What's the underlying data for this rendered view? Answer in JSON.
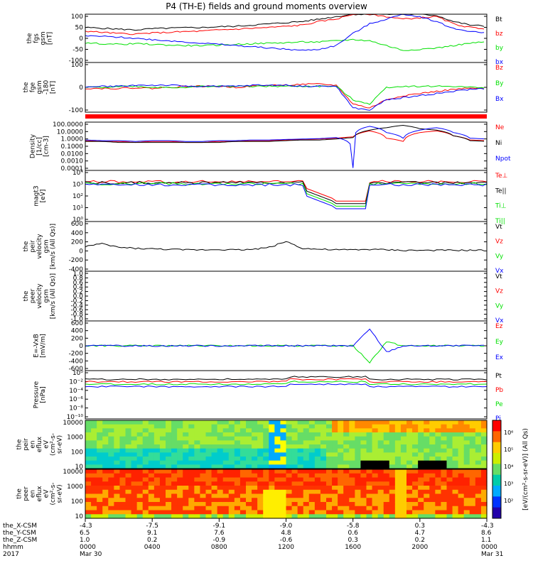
{
  "title": "P4 (TH-E) fields and ground moments overview",
  "colors": {
    "black": "#000000",
    "red": "#ff0000",
    "green": "#00e000",
    "blue": "#0000ff"
  },
  "panels": [
    {
      "id": "fgs",
      "ylabel": [
        "the",
        "fgs",
        "gsm",
        "[nT]"
      ],
      "yticks": [
        "100",
        "50",
        "0",
        "-50",
        "-100"
      ],
      "legend": [
        [
          "Bt",
          "black"
        ],
        [
          "bz",
          "red"
        ],
        [
          "by",
          "green"
        ],
        [
          "bx",
          "blue"
        ]
      ]
    },
    {
      "id": "fge",
      "ylabel": [
        "the",
        "fge",
        "gsm",
        "-180",
        "[nT]"
      ],
      "yticks": [
        "100",
        "0",
        "-100"
      ],
      "legend": [
        [
          "Bz",
          "red"
        ],
        [
          "By",
          "green"
        ],
        [
          "Bx",
          "blue"
        ]
      ]
    },
    {
      "id": "density",
      "ylabel": [
        "Density",
        "[1/cc]",
        "[cm-3]"
      ],
      "yticks": [
        "100.0000",
        "10.0000",
        "1.0000",
        "0.1000",
        "0.0100",
        "0.0010",
        "0.0001"
      ],
      "legend": [
        [
          "Ne",
          "red"
        ],
        [
          "Ni",
          "black"
        ],
        [
          "Npot",
          "blue"
        ]
      ]
    },
    {
      "id": "temp",
      "ylabel": [
        "magt3",
        "[eV]"
      ],
      "yticks": [
        "10⁴",
        "10³",
        "10²",
        "10¹",
        "10⁰"
      ],
      "legend": [
        [
          "Te⊥",
          "red"
        ],
        [
          "Te||",
          "black"
        ],
        [
          "Ti⊥",
          "green"
        ],
        [
          "Ti||",
          "green"
        ]
      ]
    },
    {
      "id": "vel1",
      "ylabel": [
        "the",
        "peir",
        "velocity",
        "gsm",
        "[km/s (All Qs)]"
      ],
      "yticks": [
        "600",
        "400",
        "200",
        "0",
        "-200",
        "-400"
      ],
      "legend": [
        [
          "Vt",
          "black"
        ],
        [
          "Vz",
          "red"
        ],
        [
          "Vy",
          "green"
        ],
        [
          "Vx",
          "blue"
        ]
      ]
    },
    {
      "id": "vel2",
      "ylabel": [
        "the",
        "peer",
        "velocity",
        "gsm",
        "[km/s (All Qs)]"
      ],
      "yticks": [
        "1.0",
        "0.8",
        "0.6",
        "0.4",
        "0.2",
        "0.0",
        "-0.2",
        "-0.4",
        "-0.6",
        "-0.8",
        "-1.0"
      ],
      "legend": [
        [
          "Vt",
          "black"
        ],
        [
          "Vz",
          "red"
        ],
        [
          "Vy",
          "green"
        ],
        [
          "Vx",
          "blue"
        ]
      ]
    },
    {
      "id": "efield",
      "ylabel": [
        "E=-VxB",
        "[mV/m]"
      ],
      "yticks": [
        "600",
        "400",
        "200",
        "0",
        "-200",
        "-400",
        "-600"
      ],
      "legend": [
        [
          "Ez",
          "red"
        ],
        [
          "Ey",
          "green"
        ],
        [
          "Ex",
          "blue"
        ]
      ]
    },
    {
      "id": "pressure",
      "ylabel": [
        "Pressure",
        "[nPa]"
      ],
      "yticks": [
        "10⁰",
        "10⁻²",
        "10⁻⁴",
        "10⁻⁶",
        "10⁻⁸",
        "10⁻¹⁰"
      ],
      "legend": [
        [
          "Pt",
          "black"
        ],
        [
          "Pb",
          "red"
        ],
        [
          "Pe",
          "green"
        ],
        [
          "Pi",
          "blue"
        ]
      ]
    },
    {
      "id": "ion_spec",
      "ylabel": [
        "the",
        "peir",
        "en",
        "eflux",
        "eV",
        "(cm²-s-",
        "sr-eV)"
      ],
      "yticks": [
        "10000",
        "1000",
        "100",
        "10"
      ],
      "legend": []
    },
    {
      "id": "ele_spec",
      "ylabel": [
        "the",
        "peer",
        "en",
        "eflux",
        "eV",
        "(cm²-s-",
        "sr-eV)"
      ],
      "yticks": [
        "10000",
        "1000",
        "100",
        "10"
      ],
      "legend": []
    }
  ],
  "colorbar": {
    "ticks": [
      "10⁶",
      "10⁵",
      "10⁴",
      "10³",
      "10²"
    ],
    "label": "[eV/(cm²-s-sr-eV)] (All Qs)"
  },
  "xaxis": {
    "row_labels": [
      "the_X-CSM",
      "the_Y-CSM",
      "the_Z-CSM",
      "hhmm",
      "2017"
    ],
    "columns": [
      {
        "x": "-4.3",
        "y": "6.5",
        "z": "1.0",
        "t": "0000",
        "d": "Mar 30"
      },
      {
        "x": "-7.5",
        "y": "9.1",
        "z": "0.2",
        "t": "0400",
        "d": ""
      },
      {
        "x": "-9.1",
        "y": "7.6",
        "z": "-0.9",
        "t": "0800",
        "d": ""
      },
      {
        "x": "-9.0",
        "y": "4.8",
        "z": "-0.6",
        "t": "1200",
        "d": ""
      },
      {
        "x": "-5.8",
        "y": "0.6",
        "z": "0.3",
        "t": "1600",
        "d": ""
      },
      {
        "x": "0.3",
        "y": "4.7",
        "z": "0.2",
        "t": "2000",
        "d": ""
      },
      {
        "x": "-4.3",
        "y": "8.6",
        "z": "1.1",
        "t": "0000",
        "d": "Mar 31"
      }
    ]
  },
  "chart_data": {
    "type": "line",
    "title": "P4 (TH-E) fields and ground moments overview",
    "x_hours": [
      0,
      1,
      2,
      3,
      4,
      5,
      6,
      7,
      8,
      9,
      10,
      11,
      12,
      13,
      14,
      15,
      16,
      17,
      18,
      19,
      20,
      21,
      22,
      23,
      24
    ],
    "series": [
      {
        "panel": "fgs",
        "name": "Bt",
        "values": [
          45,
          42,
          38,
          35,
          40,
          42,
          44,
          45,
          48,
          50,
          55,
          60,
          65,
          70,
          80,
          90,
          100,
          100,
          100,
          100,
          100,
          95,
          70,
          55,
          50
        ]
      },
      {
        "panel": "fgs",
        "name": "bz",
        "values": [
          30,
          25,
          20,
          18,
          22,
          25,
          28,
          30,
          35,
          38,
          42,
          45,
          50,
          55,
          70,
          80,
          100,
          100,
          90,
          80,
          85,
          90,
          60,
          45,
          40
        ]
      },
      {
        "panel": "fgs",
        "name": "by",
        "values": [
          -20,
          -22,
          -25,
          -22,
          -25,
          -28,
          -30,
          -30,
          -28,
          -25,
          -22,
          -20,
          -18,
          -15,
          -15,
          -10,
          -5,
          -10,
          -30,
          -50,
          -45,
          -40,
          -30,
          -20,
          -15
        ]
      },
      {
        "panel": "fgs",
        "name": "bx",
        "values": [
          10,
          8,
          5,
          0,
          -5,
          -10,
          -15,
          -20,
          -25,
          -30,
          -35,
          -40,
          -45,
          -50,
          -45,
          -30,
          20,
          60,
          80,
          100,
          90,
          70,
          40,
          30,
          20
        ]
      },
      {
        "panel": "fge",
        "name": "Bz",
        "values": [
          -5,
          -5,
          -5,
          -2,
          -5,
          0,
          5,
          5,
          5,
          0,
          5,
          10,
          10,
          15,
          15,
          10,
          -80,
          -100,
          -60,
          -40,
          -30,
          -20,
          -10,
          -5,
          -5
        ]
      },
      {
        "panel": "fge",
        "name": "By",
        "values": [
          0,
          0,
          5,
          5,
          0,
          0,
          0,
          5,
          5,
          5,
          5,
          5,
          5,
          5,
          5,
          5,
          -60,
          -80,
          0,
          5,
          5,
          5,
          5,
          0,
          0
        ]
      },
      {
        "panel": "fge",
        "name": "Bx",
        "values": [
          0,
          5,
          5,
          10,
          10,
          10,
          5,
          5,
          5,
          5,
          10,
          10,
          10,
          5,
          5,
          5,
          -100,
          -110,
          -60,
          -50,
          -40,
          -30,
          -20,
          -10,
          -5
        ]
      },
      {
        "panel": "density",
        "name": "Ne",
        "values": [
          0.5,
          0.4,
          0.4,
          0.3,
          0.4,
          0.4,
          0.3,
          0.3,
          0.4,
          0.4,
          0.5,
          0.5,
          0.6,
          0.7,
          0.8,
          1.0,
          1.5,
          8,
          1,
          0.4,
          5,
          8,
          2,
          0.6,
          0.5
        ]
      },
      {
        "panel": "density",
        "name": "Ni",
        "values": [
          0.4,
          0.4,
          0.3,
          0.3,
          0.3,
          0.3,
          0.3,
          0.3,
          0.3,
          0.4,
          0.4,
          0.4,
          0.5,
          0.6,
          0.6,
          0.8,
          1.2,
          10,
          20,
          40,
          15,
          10,
          2,
          0.5,
          0.4
        ]
      },
      {
        "panel": "density",
        "name": "Npot",
        "values": [
          0.6,
          0.5,
          0.5,
          0.4,
          0.5,
          0.5,
          0.4,
          0.4,
          0.5,
          0.5,
          0.6,
          0.6,
          0.7,
          0.8,
          0.9,
          1.2,
          0.0002,
          30,
          5,
          1,
          10,
          20,
          5,
          1,
          0.8
        ]
      },
      {
        "panel": "vel1",
        "name": "Vt",
        "values": [
          100,
          150,
          80,
          60,
          50,
          40,
          30,
          30,
          40,
          30,
          40,
          80,
          200,
          60,
          40,
          30,
          30,
          40,
          30,
          20,
          20,
          20,
          20,
          20,
          20
        ]
      },
      {
        "panel": "efield",
        "name": "Ey",
        "values": [
          0,
          0,
          0,
          0,
          0,
          0,
          0,
          0,
          0,
          0,
          0,
          0,
          0,
          0,
          0,
          0,
          0,
          -400,
          100,
          0,
          0,
          0,
          0,
          0,
          0
        ]
      },
      {
        "panel": "efield",
        "name": "Ex",
        "values": [
          0,
          0,
          0,
          0,
          0,
          0,
          0,
          0,
          0,
          0,
          0,
          0,
          0,
          0,
          0,
          0,
          0,
          400,
          -150,
          0,
          0,
          0,
          0,
          0,
          0
        ]
      }
    ],
    "xlim": [
      0,
      24
    ],
    "grid": false
  }
}
